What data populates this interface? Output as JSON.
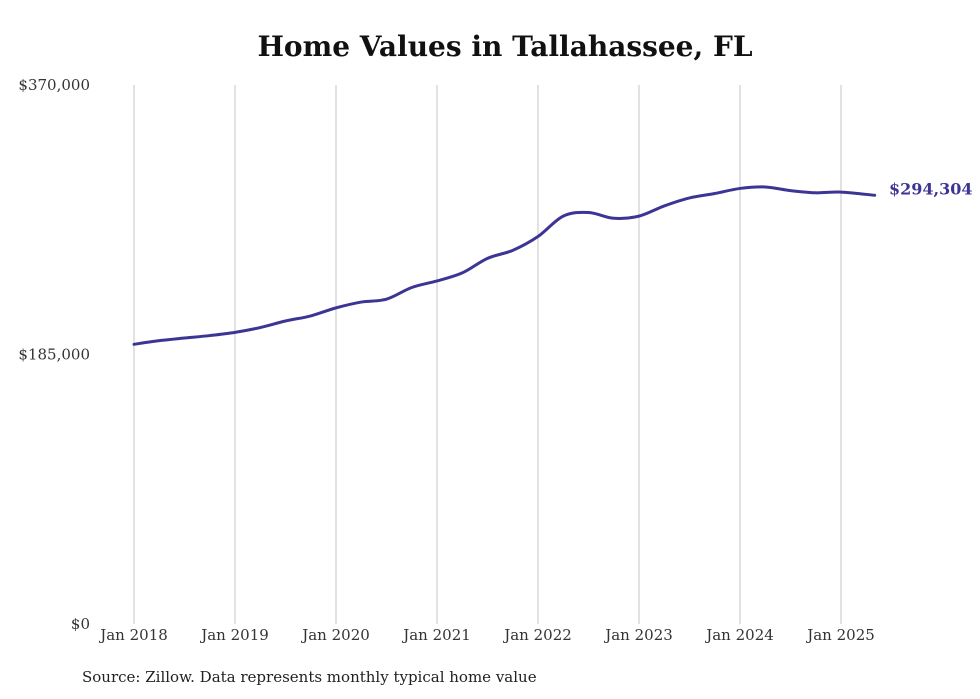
{
  "chart_data": {
    "type": "line",
    "title": "Home Values in Tallahassee, FL",
    "xlabel": "",
    "ylabel": "",
    "ylim": [
      0,
      370000
    ],
    "y_ticks": [
      "$0",
      "$185,000",
      "$370,000"
    ],
    "y_tick_values": [
      0,
      185000,
      370000
    ],
    "x_ticks": [
      "Jan 2018",
      "Jan 2019",
      "Jan 2020",
      "Jan 2021",
      "Jan 2022",
      "Jan 2023",
      "Jan 2024",
      "Jan 2025"
    ],
    "x_tick_values": [
      "2018-01",
      "2019-01",
      "2020-01",
      "2021-01",
      "2022-01",
      "2023-01",
      "2024-01",
      "2025-01"
    ],
    "vertical_grid": true,
    "horizontal_grid": false,
    "series": [
      {
        "color": "#3d3594",
        "x": [
          "2018-01",
          "2018-04",
          "2018-07",
          "2018-10",
          "2019-01",
          "2019-04",
          "2019-07",
          "2019-10",
          "2020-01",
          "2020-04",
          "2020-07",
          "2020-10",
          "2021-01",
          "2021-04",
          "2021-07",
          "2021-10",
          "2022-01",
          "2022-04",
          "2022-07",
          "2022-10",
          "2023-01",
          "2023-04",
          "2023-07",
          "2023-10",
          "2024-01",
          "2024-04",
          "2024-07",
          "2024-10",
          "2025-01",
          "2025-05"
        ],
        "y": [
          192000,
          194500,
          196300,
          198000,
          200200,
          203500,
          208000,
          211500,
          217000,
          221000,
          223000,
          231000,
          235500,
          241000,
          251000,
          256500,
          266000,
          280000,
          282500,
          278500,
          280000,
          287000,
          292500,
          295500,
          299000,
          300000,
          297500,
          296000,
          296500,
          294304
        ],
        "end_label": "$294,304"
      }
    ]
  },
  "source_note": "Source: Zillow. Data represents monthly typical home value"
}
